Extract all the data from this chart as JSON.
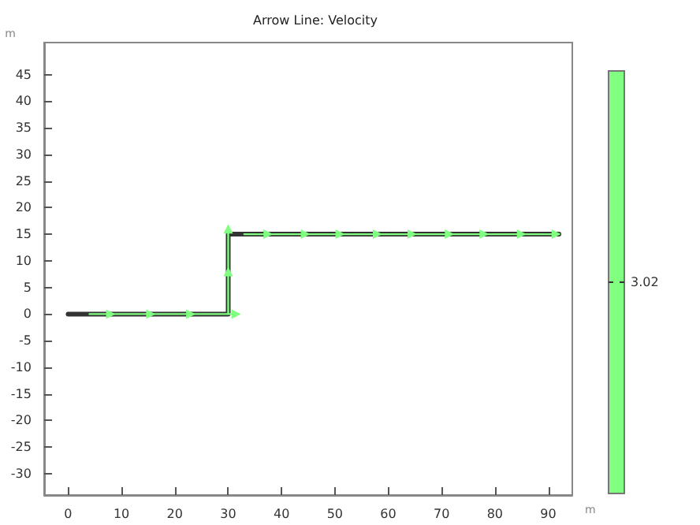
{
  "chart_data": {
    "type": "line",
    "title": "Arrow Line: Velocity",
    "xlabel": "m",
    "ylabel": "m",
    "xlim": [
      -4.5,
      94.5
    ],
    "ylim": [
      -34,
      51
    ],
    "xticks": [
      0,
      10,
      20,
      30,
      40,
      50,
      60,
      70,
      80,
      90
    ],
    "yticks": [
      -30,
      -25,
      -20,
      -15,
      -10,
      -5,
      0,
      5,
      10,
      15,
      20,
      25,
      30,
      35,
      40,
      45
    ],
    "grid": false,
    "annotations": [
      "3.02"
    ],
    "series": [
      {
        "color": "#333333",
        "marker": "none",
        "x": [
          0,
          30,
          30,
          92
        ],
        "values": [
          0,
          0,
          15,
          15
        ]
      },
      {
        "color": "#80ff80",
        "marker": "triangle",
        "x": [
          4,
          8,
          15.5,
          23,
          31.5,
          null,
          30,
          30,
          30,
          null,
          null,
          33,
          37.5,
          44.5,
          51,
          58,
          64.5,
          71.5,
          78,
          85,
          91.5
        ],
        "values": [
          0,
          0,
          0,
          0,
          0,
          null,
          0,
          8,
          16,
          null,
          null,
          15,
          15,
          15,
          15,
          15,
          15,
          15,
          15,
          15,
          15
        ]
      }
    ]
  }
}
